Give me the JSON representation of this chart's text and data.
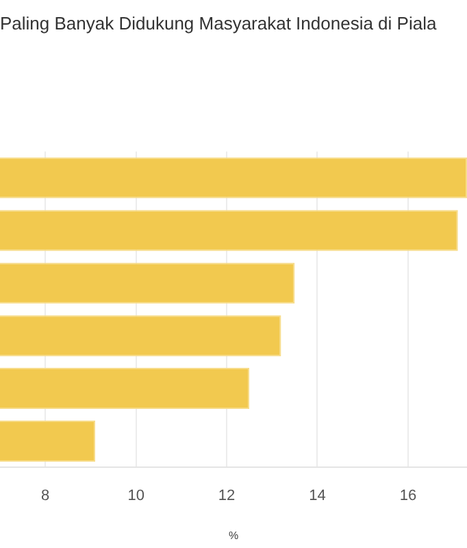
{
  "chart_data": {
    "type": "bar",
    "orientation": "horizontal",
    "title": "Paling Banyak Didukung Masyarakat Indonesia di Piala",
    "xlabel": "%",
    "categories": [
      null,
      null,
      null,
      null,
      null,
      null
    ],
    "values": [
      17.3,
      17.1,
      13.5,
      13.2,
      12.5,
      9.1
    ],
    "color": "#f2c94f",
    "xlim": [
      7,
      17.3
    ],
    "xticks": [
      8,
      10,
      12,
      14,
      16
    ],
    "grid": "x",
    "legend": false
  }
}
